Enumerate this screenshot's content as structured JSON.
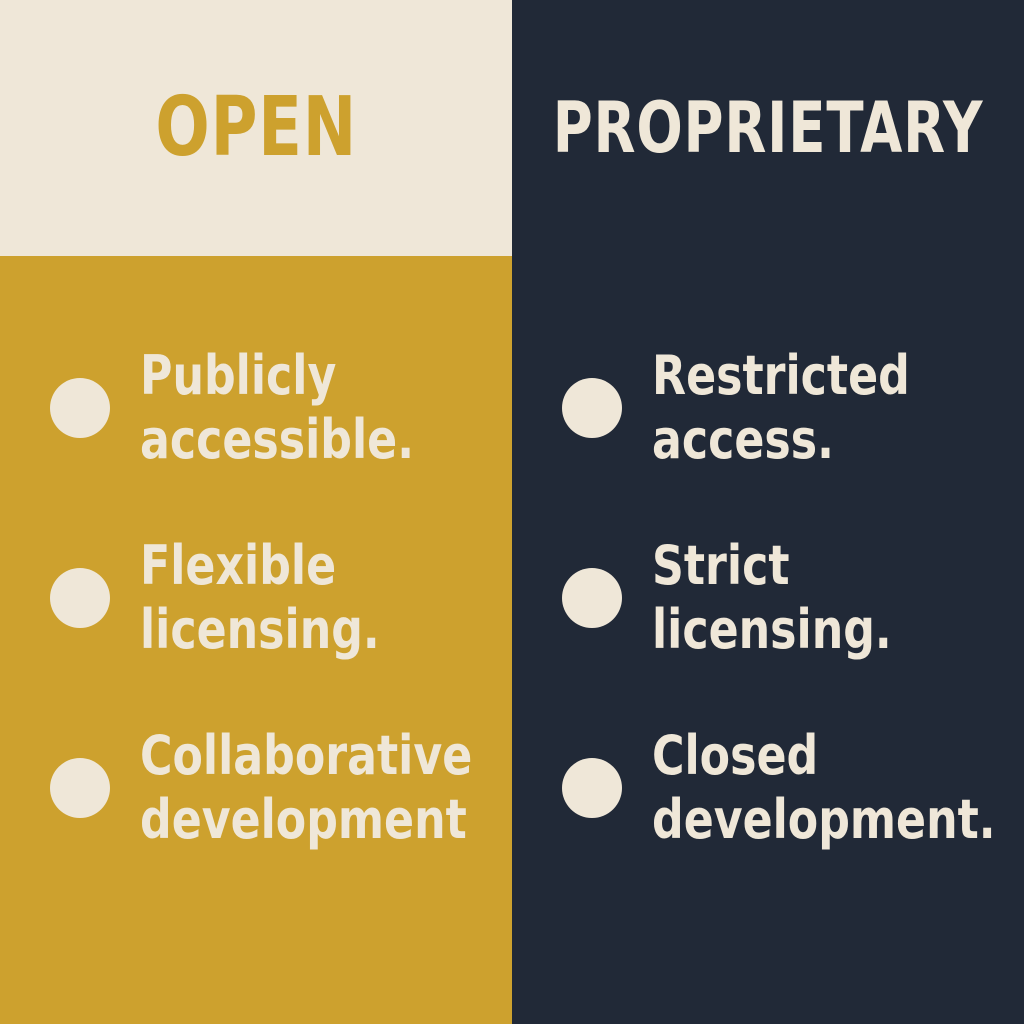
{
  "colors": {
    "cream": "#efe7d8",
    "gold": "#cda12e",
    "navy": "#212937"
  },
  "open": {
    "title": "OPEN",
    "items": [
      {
        "line1": "Publicly",
        "line2": "accessible."
      },
      {
        "line1": "Flexible",
        "line2": "licensing."
      },
      {
        "line1": "Collaborative",
        "line2": "development"
      }
    ]
  },
  "proprietary": {
    "title": "PROPRIETARY",
    "items": [
      {
        "line1": "Restricted",
        "line2": "access."
      },
      {
        "line1": "Strict",
        "line2": "licensing."
      },
      {
        "line1": "Closed",
        "line2": "development."
      }
    ]
  }
}
